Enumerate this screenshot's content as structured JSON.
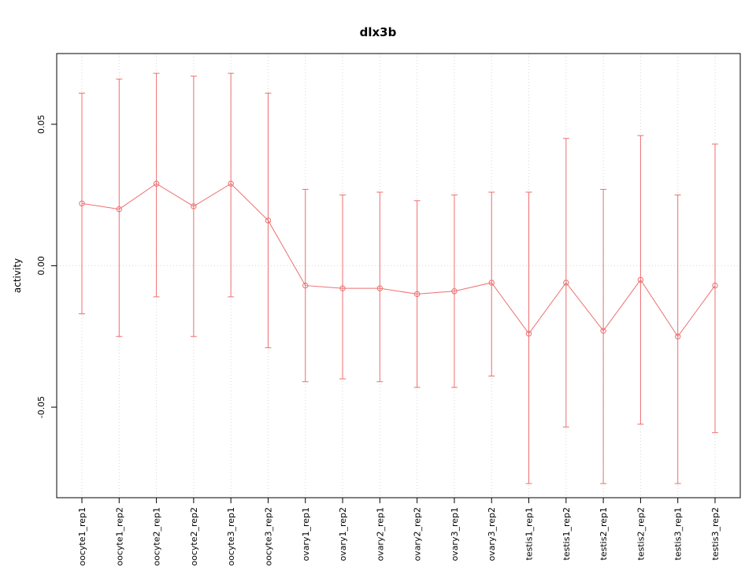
{
  "chart_data": {
    "type": "line",
    "title": "dlx3b",
    "xlabel": "",
    "ylabel": "activity",
    "ylim": [
      -0.082,
      0.075
    ],
    "yticks": [
      0.05,
      0.0,
      -0.05
    ],
    "grid": "dotted vertical per category and horizontal at zero",
    "legend": "none",
    "categories": [
      "oocyte1_rep1",
      "oocyte1_rep2",
      "oocyte2_rep1",
      "oocyte2_rep2",
      "oocyte3_rep1",
      "oocyte3_rep2",
      "ovary1_rep1",
      "ovary1_rep2",
      "ovary2_rep1",
      "ovary2_rep2",
      "ovary3_rep1",
      "ovary3_rep2",
      "testis1_rep1",
      "testis1_rep2",
      "testis2_rep1",
      "testis2_rep2",
      "testis3_rep1",
      "testis3_rep2"
    ],
    "series": [
      {
        "name": "activity",
        "values": [
          0.022,
          0.02,
          0.029,
          0.021,
          0.029,
          0.016,
          -0.007,
          -0.008,
          -0.008,
          -0.01,
          -0.009,
          -0.006,
          -0.024,
          -0.006,
          -0.023,
          -0.005,
          -0.025,
          -0.007
        ],
        "upper": [
          0.061,
          0.066,
          0.068,
          0.067,
          0.068,
          0.061,
          0.027,
          0.025,
          0.026,
          0.023,
          0.025,
          0.026,
          0.026,
          0.045,
          0.027,
          0.046,
          0.025,
          0.043
        ],
        "lower": [
          -0.017,
          -0.025,
          -0.011,
          -0.025,
          -0.011,
          -0.029,
          -0.041,
          -0.04,
          -0.041,
          -0.043,
          -0.043,
          -0.039,
          -0.077,
          -0.057,
          -0.077,
          -0.056,
          -0.077,
          -0.059
        ]
      }
    ],
    "colors": {
      "accent": "#ee6f6f",
      "grid": "#d6d6d6",
      "axis": "#000000",
      "background": "#ffffff"
    }
  }
}
